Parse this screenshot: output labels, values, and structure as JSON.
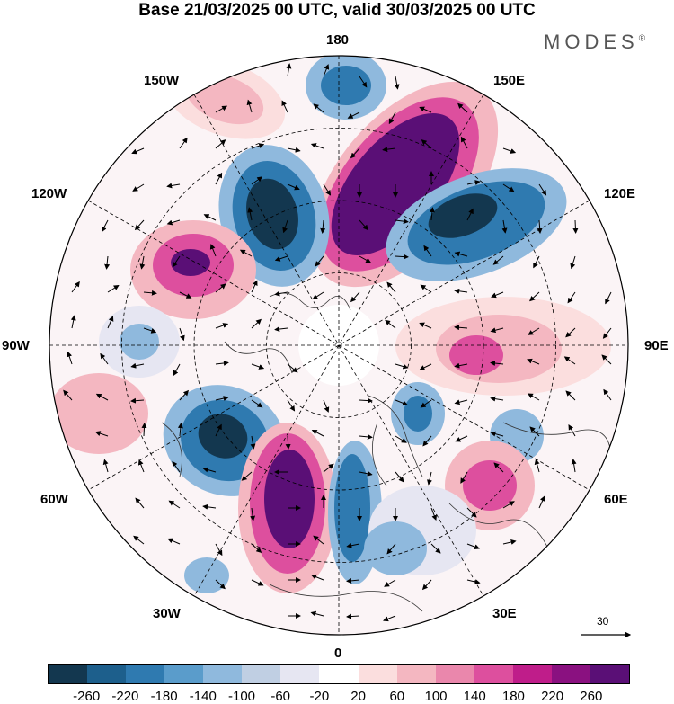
{
  "title": "Base 21/03/2025 00 UTC, valid 30/03/2025 00 UTC",
  "brand": "MODES",
  "brand_mark": "®",
  "longitude_labels": {
    "n180": "180",
    "w150": "150W",
    "e150": "150E",
    "w120": "120W",
    "e120": "120E",
    "w90": "90W",
    "e90": "90E",
    "w60": "60W",
    "e60": "60E",
    "w30": "30W",
    "e30": "30E",
    "s0": "0"
  },
  "reference_vector": {
    "value": "30"
  },
  "colorbar": {
    "colors": [
      "#13374f",
      "#1d5f8c",
      "#2f7ab0",
      "#5a9ccb",
      "#8fb9dd",
      "#c0cfe3",
      "#e6e6f2",
      "#ffffff",
      "#fbdede",
      "#f4b7c1",
      "#ea87ac",
      "#dd4f9e",
      "#bf1d8a",
      "#8a1180",
      "#5a0f76"
    ],
    "labels": [
      "-260",
      "-220",
      "-180",
      "-140",
      "-100",
      "-60",
      "-20",
      "20",
      "60",
      "100",
      "140",
      "180",
      "220",
      "260"
    ]
  },
  "anomaly_colors": {
    "neg_strong": "#13374f",
    "neg_mid": "#2f7ab0",
    "neg_weak": "#8fb9dd",
    "neg_faint": "#e6e6f2",
    "pos_faint": "#fbdede",
    "pos_weak": "#f4b7c1",
    "pos_mid": "#dd4f9e",
    "pos_strong": "#5a0f76"
  }
}
